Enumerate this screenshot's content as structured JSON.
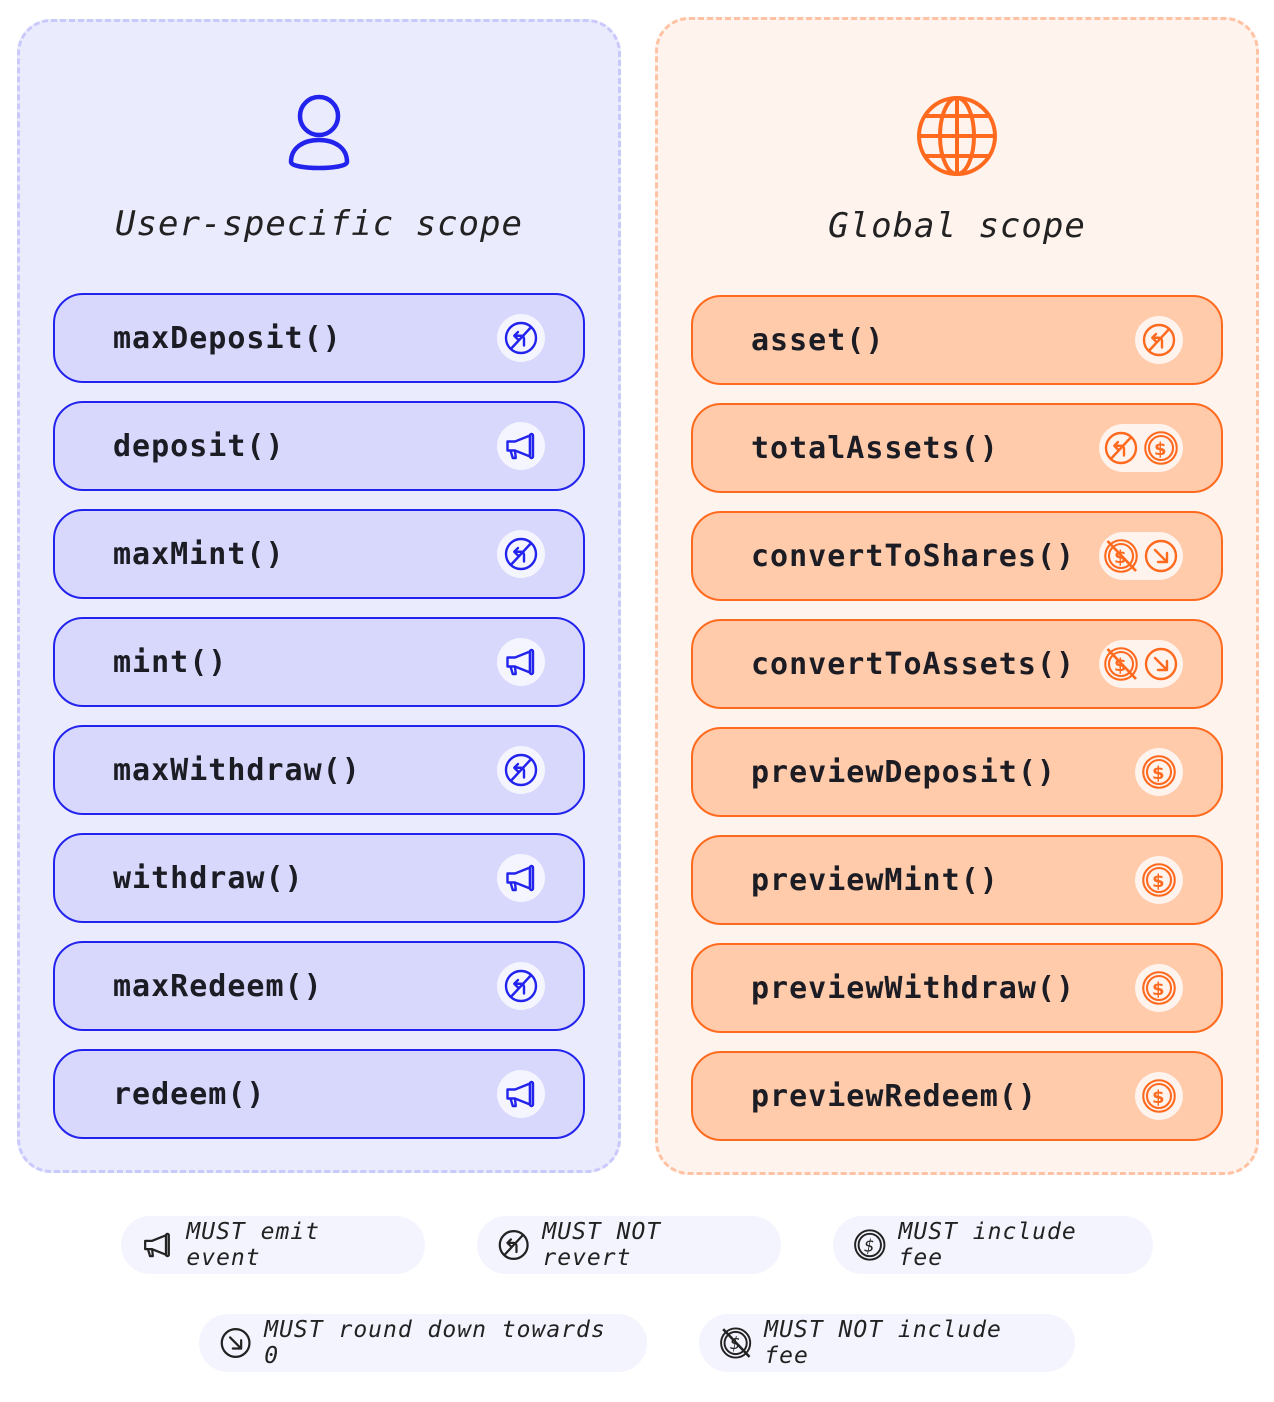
{
  "user_scope": {
    "title": "User-specific scope",
    "icon": "user-icon",
    "color": "#2323ee",
    "functions": [
      {
        "name": "maxDeposit()",
        "icons": [
          "no-revert"
        ]
      },
      {
        "name": "deposit()",
        "icons": [
          "emit-event"
        ]
      },
      {
        "name": "maxMint()",
        "icons": [
          "no-revert"
        ]
      },
      {
        "name": "mint()",
        "icons": [
          "emit-event"
        ]
      },
      {
        "name": "maxWithdraw()",
        "icons": [
          "no-revert"
        ]
      },
      {
        "name": "withdraw()",
        "icons": [
          "emit-event"
        ]
      },
      {
        "name": "maxRedeem()",
        "icons": [
          "no-revert"
        ]
      },
      {
        "name": "redeem()",
        "icons": [
          "emit-event"
        ]
      }
    ]
  },
  "global_scope": {
    "title": "Global scope",
    "icon": "globe-icon",
    "color": "#ff6a1f",
    "functions": [
      {
        "name": "asset()",
        "icons": [
          "no-revert"
        ]
      },
      {
        "name": "totalAssets()",
        "icons": [
          "no-revert",
          "include-fee"
        ]
      },
      {
        "name": "convertToShares()",
        "icons": [
          "no-fee",
          "round-down"
        ]
      },
      {
        "name": "convertToAssets()",
        "icons": [
          "no-fee",
          "round-down"
        ]
      },
      {
        "name": "previewDeposit()",
        "icons": [
          "include-fee"
        ]
      },
      {
        "name": "previewMint()",
        "icons": [
          "include-fee"
        ]
      },
      {
        "name": "previewWithdraw()",
        "icons": [
          "include-fee"
        ]
      },
      {
        "name": "previewRedeem()",
        "icons": [
          "include-fee"
        ]
      }
    ]
  },
  "legend": [
    {
      "icon": "emit-event",
      "label": "MUST emit event"
    },
    {
      "icon": "no-revert",
      "label": "MUST NOT revert"
    },
    {
      "icon": "include-fee",
      "label": "MUST include fee"
    },
    {
      "icon": "round-down",
      "label": "MUST round down towards 0"
    },
    {
      "icon": "no-fee",
      "label": "MUST NOT include fee"
    }
  ]
}
